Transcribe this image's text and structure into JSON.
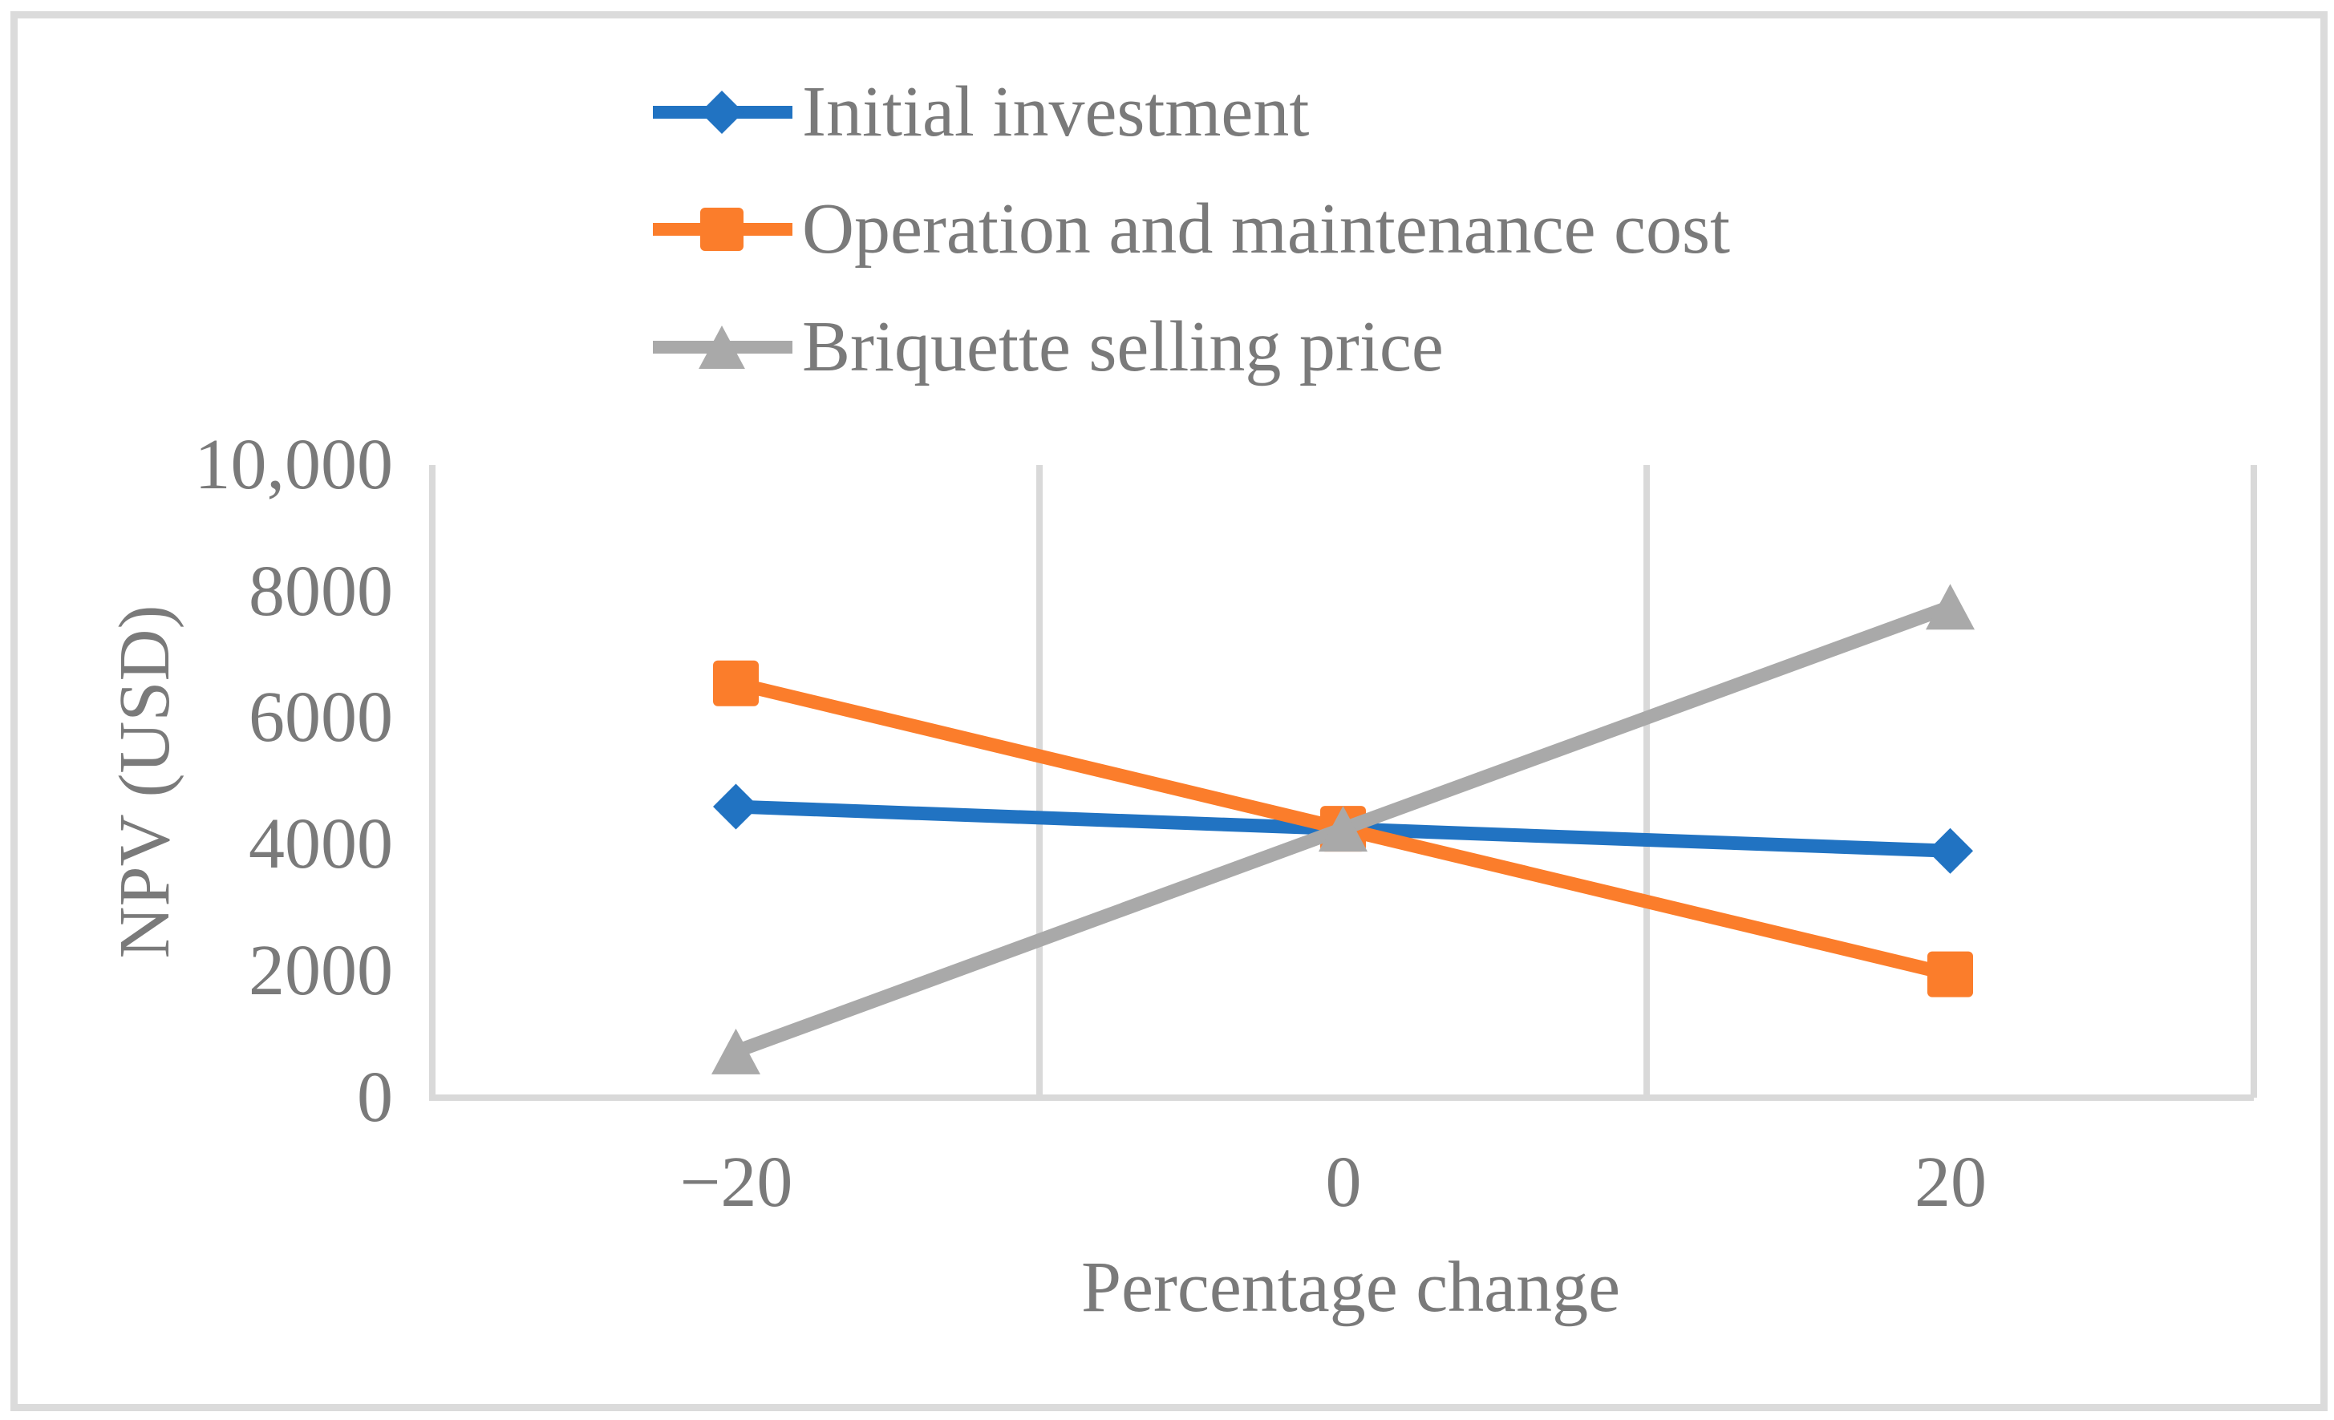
{
  "chart_data": {
    "type": "line",
    "title": "",
    "x_axis": {
      "title": "Percentage change",
      "tick_labels": [
        "−20",
        "0",
        "20"
      ],
      "values": [
        -20,
        0,
        20
      ]
    },
    "y_axis": {
      "title": "NPV (USD)",
      "tick_labels": [
        "10,000",
        "8000",
        "6000",
        "4000",
        "2000",
        "0"
      ],
      "tick_values": [
        10000,
        8000,
        6000,
        4000,
        2000,
        0
      ],
      "range": [
        0,
        10000
      ]
    },
    "grid": {
      "vertical": true,
      "horizontal": false
    },
    "legend": {
      "position": "top-left",
      "orientation": "vertical"
    },
    "series": [
      {
        "name": "Initial investment",
        "marker": "diamond",
        "color": "#2173C2",
        "values": [
          4600,
          4250,
          3900
        ]
      },
      {
        "name": "Operation and maintenance cost",
        "marker": "square",
        "color": "#FB7D2B",
        "values": [
          6550,
          4250,
          1950
        ]
      },
      {
        "name": "Briquette selling price",
        "marker": "triangle",
        "color": "#A9A9A9",
        "values": [
          730,
          4250,
          7760
        ]
      }
    ]
  },
  "style": {
    "text_color": "#7A7A7A",
    "gridline_color": "#D9D9D9",
    "axis_line_color": "#D9D9D9",
    "figure_border_color": "#DBDBDB",
    "background": "#FFFFFF"
  }
}
